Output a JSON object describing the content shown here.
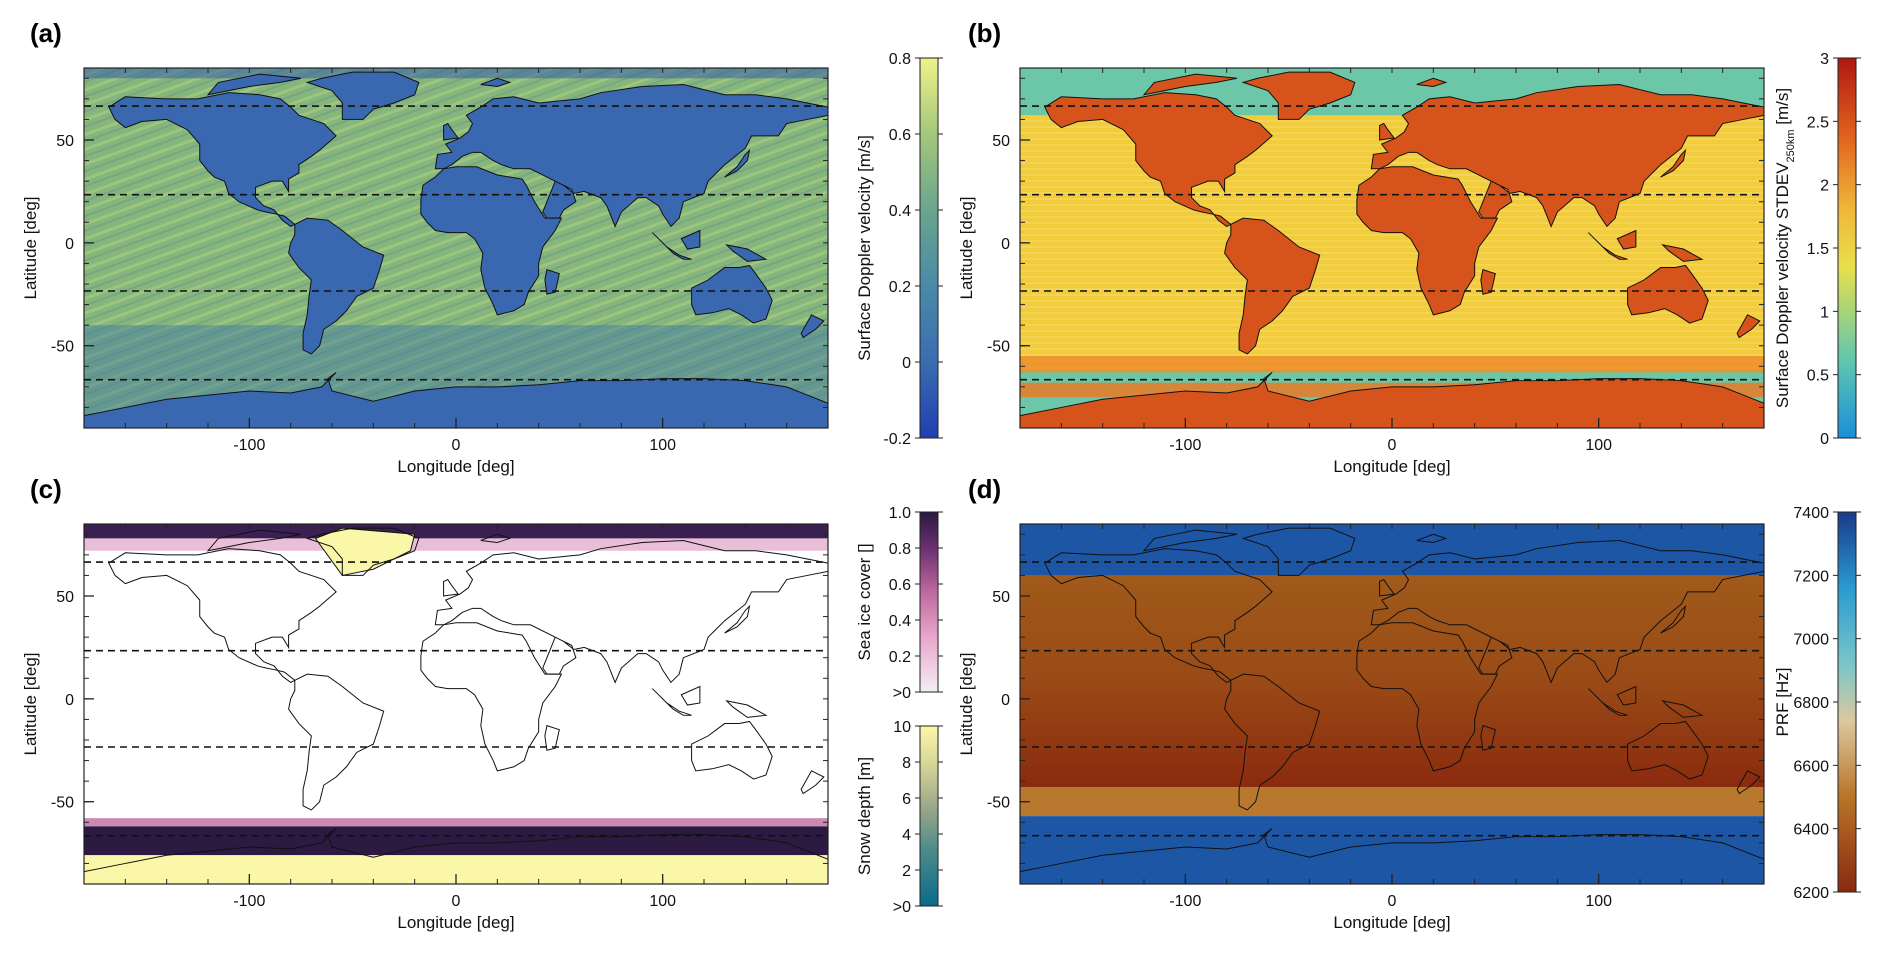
{
  "chart_data": [
    {
      "panel": "a",
      "type": "heatmap",
      "xlabel": "Longitude [deg]",
      "ylabel": "Latitude [deg]",
      "xlim": [
        -180,
        180
      ],
      "ylim": [
        -90,
        90
      ],
      "x_ticks": [
        "-100",
        "0",
        "100"
      ],
      "y_ticks": [
        "50",
        "0",
        "-50"
      ],
      "reference_lines_lat": [
        66.5,
        23.4,
        -23.4,
        -66.5
      ],
      "colorbar": {
        "label": "Surface Doppler velocity [m/s]",
        "range": [
          -0.2,
          0.8
        ],
        "ticks": [
          "0.8",
          "0.6",
          "0.4",
          "0.2",
          "0",
          "-0.2"
        ],
        "colors": [
          "#1f3fb0",
          "#3a6db0",
          "#4a8aa8",
          "#6aa58e",
          "#a4c77a",
          "#f0f28a"
        ]
      }
    },
    {
      "panel": "b",
      "type": "heatmap",
      "xlabel": "Longitude [deg]",
      "ylabel": "Latitude [deg]",
      "xlim": [
        -180,
        180
      ],
      "ylim": [
        -90,
        90
      ],
      "x_ticks": [
        "-100",
        "0",
        "100"
      ],
      "y_ticks": [
        "50",
        "0",
        "-50"
      ],
      "reference_lines_lat": [
        66.5,
        23.4,
        -23.4,
        -66.5
      ],
      "colorbar": {
        "label_main": "Surface Doppler velocity STDEV",
        "label_sub": "250km",
        "label_unit": " [m/s]",
        "range": [
          0,
          3
        ],
        "ticks": [
          "3",
          "2.5",
          "2",
          "1.5",
          "1",
          "0.5",
          "0"
        ],
        "colors": [
          "#1a8fd8",
          "#5ec6b0",
          "#e8e04a",
          "#f0b83a",
          "#e0601e",
          "#b01810"
        ]
      }
    },
    {
      "panel": "c",
      "type": "heatmap",
      "xlabel": "Longitude [deg]",
      "ylabel": "Latitude [deg]",
      "xlim": [
        -180,
        180
      ],
      "ylim": [
        -90,
        90
      ],
      "x_ticks": [
        "-100",
        "0",
        "100"
      ],
      "y_ticks": [
        "50",
        "0",
        "-50"
      ],
      "reference_lines_lat": [
        66.5,
        23.4,
        -23.4,
        -66.5
      ],
      "colorbar_top": {
        "label": "Sea ice cover []",
        "ticks": [
          "1.0",
          "0.8",
          "0.6",
          "0.4",
          "0.2",
          ">0"
        ],
        "colors": [
          "#f4eef6",
          "#e8a8cc",
          "#c06aa0",
          "#6a3070",
          "#2a1840"
        ]
      },
      "colorbar_bottom": {
        "label": "Snow depth [m]",
        "ticks": [
          "10",
          "8",
          "6",
          "4",
          "2",
          ">0"
        ],
        "colors": [
          "#0a6a8a",
          "#4a8a8a",
          "#9aa88a",
          "#d8d898",
          "#fbf7a8"
        ]
      }
    },
    {
      "panel": "d",
      "type": "heatmap",
      "xlabel": "Longitude [deg]",
      "ylabel": "Latitude [deg]",
      "xlim": [
        -180,
        180
      ],
      "ylim": [
        -90,
        90
      ],
      "x_ticks": [
        "-100",
        "0",
        "100"
      ],
      "y_ticks": [
        "50",
        "0",
        "-50"
      ],
      "reference_lines_lat": [
        66.5,
        23.4,
        -23.4,
        -66.5
      ],
      "prf_bands": [
        {
          "lat_from": 85,
          "lat_to": 60,
          "value": 7380
        },
        {
          "lat_from": 60,
          "lat_to": -43,
          "value": 6300
        },
        {
          "lat_from": -43,
          "lat_to": -57,
          "value": 6500
        },
        {
          "lat_from": -57,
          "lat_to": -90,
          "value": 7350
        }
      ],
      "colorbar": {
        "label": "PRF [Hz]",
        "range": [
          6120,
          7420
        ],
        "ticks": [
          "7400",
          "7200",
          "7000",
          "6800",
          "6600",
          "6400",
          "6200"
        ],
        "colors": [
          "#8a2a10",
          "#b8742a",
          "#dcc8a0",
          "#7ac6c8",
          "#2a9ad0",
          "#1a3a8a"
        ]
      }
    }
  ],
  "labels": {
    "a": "(a)",
    "b": "(b)",
    "c": "(c)",
    "d": "(d)"
  },
  "colors": {
    "ocean_a": "#8fbf7a",
    "land_a": "#3a68b0",
    "ocean_b": "#f2cc3a",
    "land_b": "#d6541c",
    "ice_b": "#6cc6a8"
  }
}
